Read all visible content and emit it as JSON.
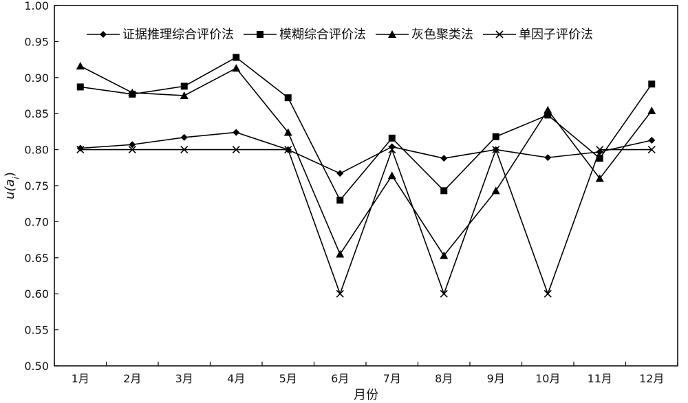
{
  "chart_data": {
    "type": "line",
    "title": "",
    "xlabel": "月份",
    "ylabel": "u(a",
    "ylabel_subscript": "i",
    "ylabel_close": ")",
    "ylim": [
      0.5,
      1.0
    ],
    "yticks": [
      0.5,
      0.55,
      0.6,
      0.65,
      0.7,
      0.75,
      0.8,
      0.85,
      0.9,
      0.95,
      1.0
    ],
    "ytick_labels": [
      "0.50",
      "0.55",
      "0.60",
      "0.65",
      "0.70",
      "0.75",
      "0.80",
      "0.85",
      "0.90",
      "0.95",
      "1.00"
    ],
    "categories": [
      "1月",
      "2月",
      "3月",
      "4月",
      "5月",
      "6月",
      "7月",
      "8月",
      "9月",
      "10月",
      "11月",
      "12月"
    ],
    "grid": false,
    "legend_position": "top",
    "series": [
      {
        "name": "证据推理综合评价法",
        "marker": "diamond",
        "color": "#000000",
        "values": [
          0.802,
          0.807,
          0.817,
          0.824,
          0.8,
          0.767,
          0.804,
          0.788,
          0.8,
          0.789,
          0.797,
          0.813
        ]
      },
      {
        "name": "模糊综合评价法",
        "marker": "square",
        "color": "#000000",
        "values": [
          0.887,
          0.877,
          0.888,
          0.928,
          0.872,
          0.73,
          0.816,
          0.743,
          0.818,
          0.848,
          0.788,
          0.891
        ]
      },
      {
        "name": "灰色聚类法",
        "marker": "triangle",
        "color": "#000000",
        "values": [
          0.916,
          0.879,
          0.875,
          0.913,
          0.824,
          0.655,
          0.764,
          0.653,
          0.743,
          0.855,
          0.76,
          0.854
        ]
      },
      {
        "name": "单因子评价法",
        "marker": "x",
        "color": "#000000",
        "values": [
          0.8,
          0.8,
          0.8,
          0.8,
          0.8,
          0.6,
          0.8,
          0.6,
          0.8,
          0.6,
          0.8,
          0.8
        ]
      }
    ]
  }
}
